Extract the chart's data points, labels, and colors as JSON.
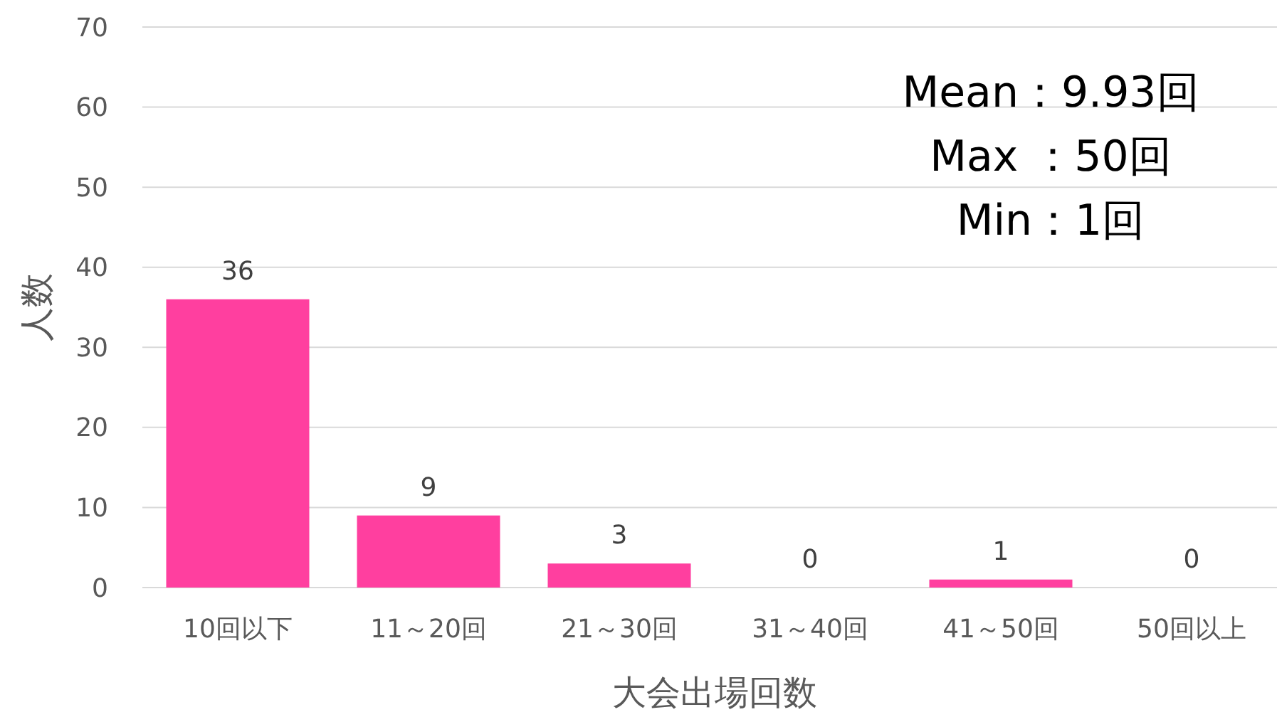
{
  "chart_data": {
    "type": "bar",
    "xlabel": "大会出場回数",
    "ylabel": "人数",
    "categories": [
      "10回以下",
      "11～20回",
      "21～30回",
      "31～40回",
      "41～50回",
      "50回以上"
    ],
    "values": [
      36,
      9,
      3,
      0,
      1,
      0
    ],
    "color": "#ff3f9f",
    "ylim": [
      0,
      70
    ],
    "yticks": [
      0,
      10,
      20,
      30,
      40,
      50,
      60,
      70
    ],
    "grid": "y",
    "data_labels": true,
    "annotations": [
      "Mean：9.93回",
      "Max ：50回",
      "Min：1回"
    ]
  }
}
